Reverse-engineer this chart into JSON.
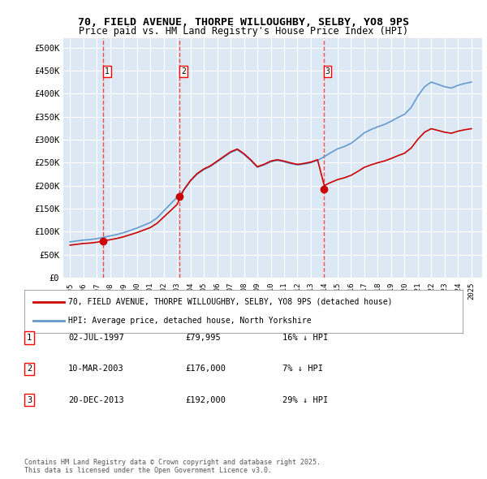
{
  "title_line1": "70, FIELD AVENUE, THORPE WILLOUGHBY, SELBY, YO8 9PS",
  "title_line2": "Price paid vs. HM Land Registry's House Price Index (HPI)",
  "ylabel": "",
  "xlabel": "",
  "bg_color": "#dce9f5",
  "plot_bg_color": "#dce9f5",
  "legend_line1": "70, FIELD AVENUE, THORPE WILLOUGHBY, SELBY, YO8 9PS (detached house)",
  "legend_line2": "HPI: Average price, detached house, North Yorkshire",
  "red_line_color": "#cc0000",
  "blue_line_color": "#6699cc",
  "transactions": [
    {
      "label": "1",
      "date_num": 1997.5,
      "price": 79995
    },
    {
      "label": "2",
      "date_num": 2003.19,
      "price": 176000
    },
    {
      "label": "3",
      "date_num": 2013.97,
      "price": 192000
    }
  ],
  "transaction_labels": [
    {
      "num": "1",
      "date": "02-JUL-1997",
      "price": "£79,995",
      "hpi": "16% ↓ HPI"
    },
    {
      "num": "2",
      "date": "10-MAR-2003",
      "price": "£176,000",
      "hpi": "7% ↓ HPI"
    },
    {
      "num": "3",
      "date": "20-DEC-2013",
      "price": "£192,000",
      "hpi": "29% ↓ HPI"
    }
  ],
  "footer": "Contains HM Land Registry data © Crown copyright and database right 2025.\nThis data is licensed under the Open Government Licence v3.0.",
  "ylim": [
    0,
    520000
  ],
  "yticks": [
    0,
    50000,
    100000,
    150000,
    200000,
    250000,
    300000,
    350000,
    400000,
    450000,
    500000
  ],
  "ytick_labels": [
    "£0",
    "£50K",
    "£100K",
    "£150K",
    "£200K",
    "£250K",
    "£300K",
    "£350K",
    "£400K",
    "£450K",
    "£500K"
  ],
  "xlim_start": 1994.5,
  "xlim_end": 2025.8
}
